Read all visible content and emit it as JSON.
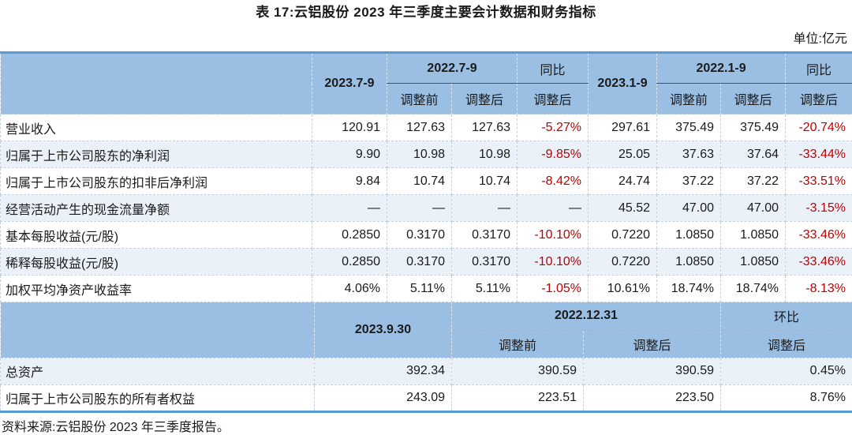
{
  "page": {
    "title": "表 17:云铝股份 2023 年三季度主要会计数据和财务指标",
    "unit_label": "单位:亿元",
    "source_note": "资料来源:云铝股份 2023 年三季度报告。"
  },
  "colors": {
    "header_bg": "#9BBEE3",
    "accent_border": "#5B9BD5",
    "alt_row_bg": "#EAF1F9",
    "negative_text": "#C00000"
  },
  "section1": {
    "header": {
      "col_2023_7_9": "2023.7-9",
      "group_2022_7_9": "2022.7-9",
      "group_yoy_q": "同比",
      "col_2023_1_9": "2023.1-9",
      "group_2022_1_9": "2022.1-9",
      "group_yoy_ytd": "同比",
      "sub_labels": [
        "调整前",
        "调整后",
        "调整后",
        "调整前",
        "调整后",
        "调整后"
      ]
    },
    "rows": [
      {
        "label": "营业收入",
        "values": [
          "120.91",
          "127.63",
          "127.63",
          "-5.27%",
          "297.61",
          "375.49",
          "375.49",
          "-20.74%"
        ]
      },
      {
        "label": "归属于上市公司股东的净利润",
        "values": [
          "9.90",
          "10.98",
          "10.98",
          "-9.85%",
          "25.05",
          "37.63",
          "37.64",
          "-33.44%"
        ]
      },
      {
        "label": "归属于上市公司股东的扣非后净利润",
        "values": [
          "9.84",
          "10.74",
          "10.74",
          "-8.42%",
          "24.74",
          "37.22",
          "37.22",
          "-33.51%"
        ]
      },
      {
        "label": "经营活动产生的现金流量净额",
        "values": [
          "—",
          "—",
          "—",
          "—",
          "45.52",
          "47.00",
          "47.00",
          "-3.15%"
        ]
      },
      {
        "label": "基本每股收益(元/股)",
        "values": [
          "0.2850",
          "0.3170",
          "0.3170",
          "-10.10%",
          "0.7220",
          "1.0850",
          "1.0850",
          "-33.46%"
        ]
      },
      {
        "label": "稀释每股收益(元/股)",
        "values": [
          "0.2850",
          "0.3170",
          "0.3170",
          "-10.10%",
          "0.7220",
          "1.0850",
          "1.0850",
          "-33.46%"
        ]
      },
      {
        "label": "加权平均净资产收益率",
        "values": [
          "4.06%",
          "5.11%",
          "5.11%",
          "-1.05%",
          "10.61%",
          "18.74%",
          "18.74%",
          "-8.13%"
        ]
      }
    ]
  },
  "section2": {
    "header": {
      "col_2023_9_30": "2023.9.30",
      "group_2022_12_31": "2022.12.31",
      "group_mom": "环比",
      "sub_labels": [
        "调整前",
        "调整后",
        "调整后"
      ]
    },
    "rows": [
      {
        "label": "总资产",
        "values": [
          "392.34",
          "390.59",
          "390.59",
          "0.45%"
        ]
      },
      {
        "label": "归属于上市公司股东的所有者权益",
        "values": [
          "243.09",
          "223.51",
          "223.50",
          "8.76%"
        ]
      }
    ]
  }
}
